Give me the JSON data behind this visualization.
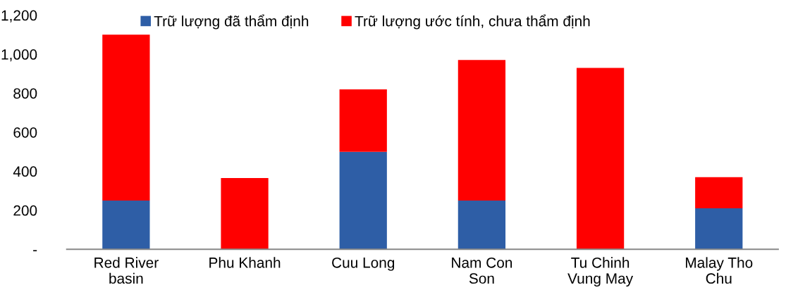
{
  "chart_data": {
    "type": "bar",
    "stacked": true,
    "categories": [
      "Red River\nbasin",
      "Phu Khanh",
      "Cuu Long",
      "Nam Con\nSon",
      "Tu Chinh\nVung May",
      "Malay Tho\nChu"
    ],
    "series": [
      {
        "name": "Trữ lượng đã thẩm định",
        "color": "#2e5ea6",
        "values": [
          250,
          0,
          500,
          250,
          0,
          210
        ]
      },
      {
        "name": "Trữ lượng ước tính, chưa thẩm định",
        "color": "#ff0000",
        "values": [
          850,
          365,
          320,
          720,
          930,
          160
        ]
      }
    ],
    "ylim": [
      0,
      1200
    ],
    "yticks": [
      {
        "value": 0,
        "label": "-"
      },
      200,
      400,
      600,
      800,
      {
        "value": 1000,
        "label": "1,000"
      },
      {
        "value": 1200,
        "label": "1,200"
      }
    ],
    "grid": false,
    "legend": "top"
  }
}
